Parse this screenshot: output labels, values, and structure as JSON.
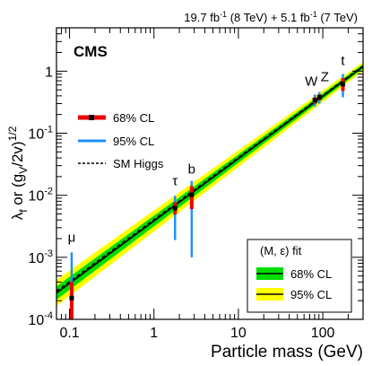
{
  "chart_data": {
    "type": "scatter",
    "luminosity_label": {
      "main": "19.7 fb",
      "main_sup": "-1",
      "main_tail": " (8 TeV) +  5.1 fb",
      "tail_sup": "-1",
      "tail_end": " (7 TeV)"
    },
    "experiment_label": "CMS",
    "xlabel": "Particle mass (GeV)",
    "ylabel": {
      "lambda": "λ",
      "lambda_sub": "f",
      "mid": " or (g",
      "g_sub": "V",
      "tail": "/2v)",
      "sup": "1/2"
    },
    "x_scale": "log",
    "y_scale": "log",
    "xlim": [
      0.07,
      300
    ],
    "ylim": [
      0.0001,
      5
    ],
    "x_ticks": [
      {
        "value": 0.1,
        "label": "0.1"
      },
      {
        "value": 1,
        "label": "1"
      },
      {
        "value": 10,
        "label": "10"
      },
      {
        "value": 100,
        "label": "100"
      }
    ],
    "y_ticks": [
      {
        "value": 0.0001,
        "base": "10",
        "exp": "-4"
      },
      {
        "value": 0.001,
        "base": "10",
        "exp": "-3"
      },
      {
        "value": 0.01,
        "base": "10",
        "exp": "-2"
      },
      {
        "value": 0.1,
        "base": "10",
        "exp": "-1"
      },
      {
        "value": 1,
        "base": "1",
        "exp": ""
      }
    ],
    "points": [
      {
        "label": "μ",
        "mass": 0.106,
        "value": 0.00022,
        "cl68": [
          0.0001,
          0.0004
        ],
        "cl95": [
          0.0001,
          0.0012
        ]
      },
      {
        "label": "τ",
        "mass": 1.777,
        "value": 0.0062,
        "cl68": [
          0.0049,
          0.0077
        ],
        "cl95": [
          0.0019,
          0.0098
        ]
      },
      {
        "label": "b",
        "mass": 2.8,
        "value": 0.0102,
        "cl68": [
          0.006,
          0.014
        ],
        "cl95": [
          0.001,
          0.017
        ]
      },
      {
        "label": "W",
        "mass": 80.4,
        "value": 0.34,
        "cl68": [
          0.3,
          0.38
        ],
        "cl95": [
          0.27,
          0.42
        ]
      },
      {
        "label": "Z",
        "mass": 91.2,
        "value": 0.38,
        "cl68": [
          0.34,
          0.42
        ],
        "cl95": [
          0.3,
          0.46
        ]
      },
      {
        "label": "t",
        "mass": 173,
        "value": 0.62,
        "cl68": [
          0.48,
          0.77
        ],
        "cl95": [
          0.38,
          0.9
        ]
      }
    ],
    "sm_higgs": {
      "slope": 1,
      "norm": 0.0040656
    },
    "fit": {
      "central_norm": 0.00385,
      "central_slope": 1.005,
      "band68_width": [
        1.28,
        1.09
      ],
      "band95_width": [
        1.62,
        1.18
      ]
    },
    "legend_points": {
      "entries": [
        {
          "label": "68% CL"
        },
        {
          "label": "95% CL"
        },
        {
          "label": "SM Higgs"
        }
      ],
      "placement": "upper-left"
    },
    "legend_fit": {
      "title": "(M, ε) fit",
      "entries": [
        {
          "label": "68% CL"
        },
        {
          "label": "95% CL"
        }
      ],
      "placement": "lower-right"
    },
    "colors": {
      "band68": "#00dd00",
      "band95": "#ffff00",
      "fit_line": "#000000",
      "sm_line": "#000000",
      "marker68": "#ee0000",
      "marker95": "#1e90ff",
      "point": "#000000"
    }
  }
}
